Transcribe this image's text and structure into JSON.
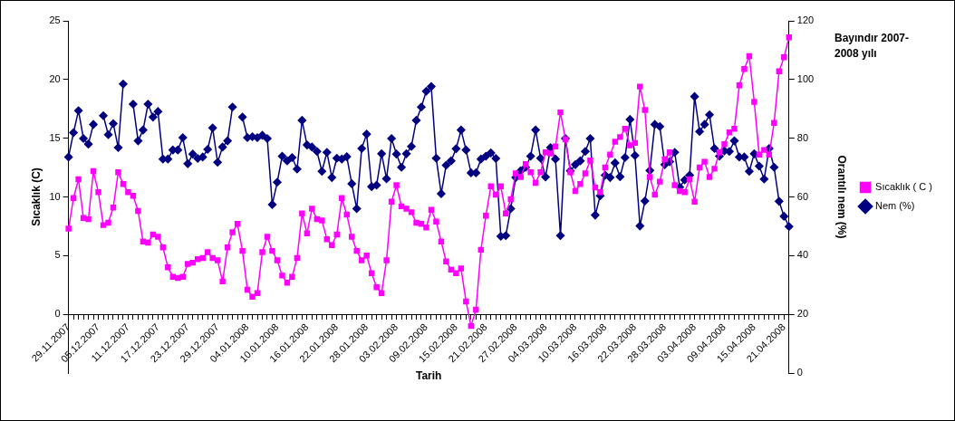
{
  "chart_data": {
    "type": "line",
    "title": "Bayındır 2007-2008 yılı",
    "xlabel": "Tarih",
    "ylabel": "Sıcaklık (C)",
    "y2label": "Orantılı nem (%)",
    "categories": [
      "29.11.2007",
      null,
      null,
      null,
      null,
      null,
      "05.12.2007",
      null,
      null,
      null,
      null,
      null,
      "11.12.2007",
      null,
      null,
      null,
      null,
      null,
      "17.12.2007",
      null,
      null,
      null,
      null,
      null,
      "23.12.2007",
      null,
      null,
      null,
      null,
      null,
      "29.12.2007",
      null,
      null,
      null,
      null,
      null,
      "04.01.2008",
      null,
      null,
      null,
      null,
      null,
      "10.01.2008",
      null,
      null,
      null,
      null,
      null,
      "16.01.2008",
      null,
      null,
      null,
      null,
      null,
      "22.01.2008",
      null,
      null,
      null,
      null,
      null,
      "28.01.2008",
      null,
      null,
      null,
      null,
      null,
      "03.02.2008",
      null,
      null,
      null,
      null,
      null,
      "09.02.2008",
      null,
      null,
      null,
      null,
      null,
      "15.02.2008",
      null,
      null,
      null,
      null,
      null,
      "21.02.2008",
      null,
      null,
      null,
      null,
      null,
      "27.02.2008",
      null,
      null,
      null,
      null,
      null,
      "04.03.2008",
      null,
      null,
      null,
      null,
      null,
      "10.03.2008",
      null,
      null,
      null,
      null,
      null,
      "16.03.2008",
      null,
      null,
      null,
      null,
      null,
      "22.03.2008",
      null,
      null,
      null,
      null,
      null,
      "28.03.2008",
      null,
      null,
      null,
      null,
      null,
      "03.04.2008",
      null,
      null,
      null,
      null,
      null,
      "09.04.2008",
      null,
      null,
      null,
      null,
      null,
      "15.04.2008",
      null,
      null,
      null,
      null,
      null,
      "21.04.2008",
      null
    ],
    "series": [
      {
        "name": "Sıcaklık ( C )",
        "color": "#ff00ff",
        "marker": "square",
        "values": [
          7.3,
          9.9,
          11.5,
          8.2,
          8.1,
          12.2,
          10.4,
          7.6,
          7.8,
          9.1,
          12.1,
          11.1,
          10.4,
          10.1,
          8.8,
          6.2,
          6.1,
          6.8,
          6.6,
          5.7,
          4.0,
          3.2,
          3.1,
          3.2,
          4.3,
          4.4,
          4.7,
          4.8,
          5.3,
          4.8,
          4.6,
          2.8,
          5.7,
          7.0,
          7.7,
          5.4,
          2.1,
          1.5,
          1.8,
          5.3,
          6.6,
          5.4,
          4.6,
          3.3,
          2.7,
          3.2,
          4.8,
          8.6,
          6.9,
          9.0,
          8.1,
          8.0,
          6.4,
          5.9,
          6.8,
          9.9,
          8.5,
          6.6,
          5.4,
          4.6,
          5.0,
          3.5,
          2.3,
          1.8,
          4.6,
          9.6,
          11.0,
          9.2,
          9.0,
          8.7,
          7.8,
          7.7,
          7.4,
          8.9,
          7.9,
          6.2,
          4.5,
          3.8,
          3.5,
          3.9,
          1.1,
          -1.0,
          0.4,
          5.5,
          8.4,
          10.9,
          10.2,
          10.9,
          8.6,
          9.8,
          12.0,
          11.7,
          12.8,
          12.1,
          11.2,
          12.1,
          13.8,
          13.7,
          14.3,
          17.2,
          14.9,
          12.1,
          10.5,
          11.1,
          12.0,
          13.1,
          10.8,
          10.4,
          12.5,
          13.6,
          14.7,
          15.1,
          15.8,
          14.4,
          14.6,
          19.4,
          17.4,
          11.7,
          10.2,
          11.3,
          13.2,
          13.8,
          11.0,
          10.5,
          10.4,
          11.5,
          9.6,
          12.5,
          13.0,
          11.7,
          12.4,
          13.8,
          14.5,
          15.5,
          15.8,
          19.5,
          20.9,
          22.0,
          18.1,
          13.6,
          14.0,
          13.6,
          16.3,
          20.7,
          21.9,
          23.6
        ]
      },
      {
        "name": "Nem (%)",
        "color": "#000080",
        "marker": "diamond",
        "axis": "y2",
        "values": [
          73.6,
          81.9,
          89.4,
          79.9,
          78.0,
          84.7,
          null,
          87.7,
          81.2,
          85.0,
          76.8,
          98.5,
          null,
          91.6,
          79.1,
          82.8,
          91.6,
          87.2,
          89.1,
          72.9,
          72.9,
          76.0,
          76.0,
          80.2,
          71.3,
          74.6,
          73.1,
          73.6,
          76.2,
          83.5,
          71.8,
          77.0,
          79.1,
          90.6,
          null,
          87.2,
          80.2,
          80.5,
          80.2,
          81.0,
          79.9,
          57.4,
          65.0,
          73.9,
          72.3,
          73.4,
          69.5,
          86.1,
          77.7,
          77.0,
          75.5,
          68.7,
          75.2,
          66.6,
          73.2,
          72.9,
          73.7,
          64.5,
          56.0,
          76.5,
          81.4,
          63.5,
          64.0,
          74.7,
          66.2,
          79.9,
          74.6,
          70.1,
          74.7,
          77.2,
          86.1,
          90.6,
          96.0,
          97.6,
          73.2,
          61.1,
          70.8,
          72.3,
          76.4,
          82.8,
          76.0,
          68.2,
          68.2,
          72.9,
          73.9,
          75.0,
          73.1,
          46.6,
          46.8,
          56.0,
          66.6,
          68.9,
          70.1,
          73.9,
          82.8,
          73.2,
          66.8,
          76.8,
          72.9,
          46.8,
          79.9,
          68.9,
          71.0,
          72.3,
          75.5,
          79.9,
          53.8,
          60.4,
          67.4,
          66.6,
          71.6,
          66.9,
          73.4,
          86.4,
          74.1,
          50.1,
          58.6,
          69.0,
          84.7,
          84.0,
          71.0,
          72.0,
          75.2,
          63.3,
          65.8,
          67.4,
          94.2,
          82.3,
          84.7,
          88.0,
          76.5,
          73.9,
          75.7,
          75.5,
          79.1,
          73.6,
          73.6,
          68.7,
          74.7,
          70.5,
          66.1,
          76.5,
          70.1,
          58.5,
          53.4,
          49.9
        ]
      }
    ],
    "ylim": [
      -5,
      25
    ],
    "yticks": [
      0,
      5,
      10,
      15,
      20,
      25
    ],
    "y2lim": [
      0,
      120
    ],
    "y2ticks": [
      0,
      20,
      40,
      60,
      80,
      100,
      120
    ],
    "grid": false,
    "legend": "right"
  }
}
